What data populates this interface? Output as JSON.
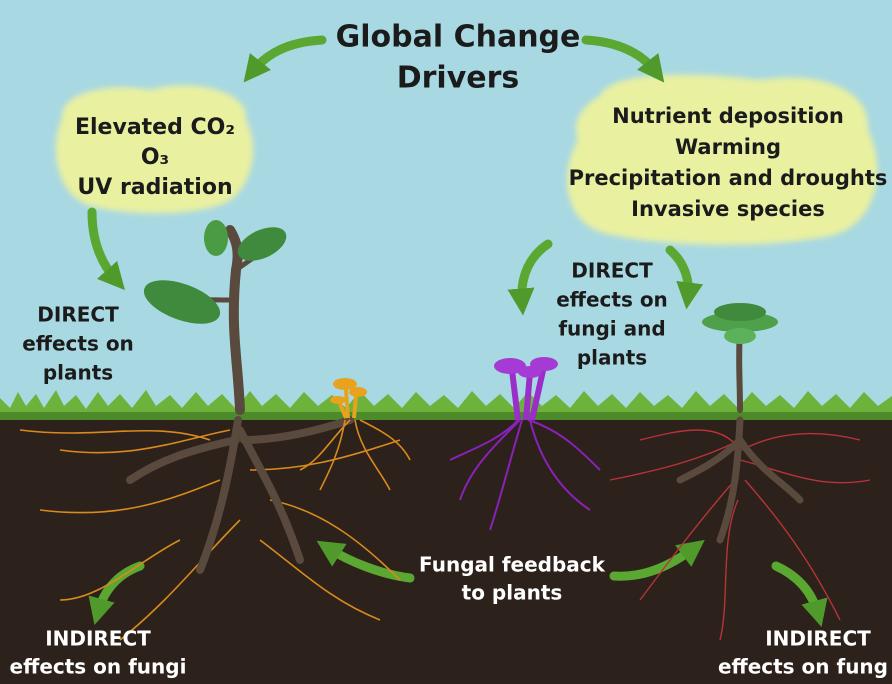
{
  "title": [
    "Global Change",
    "Drivers"
  ],
  "left_drivers": [
    "Elevated CO₂",
    "O₃",
    "UV radiation"
  ],
  "right_drivers": [
    "Nutrient deposition",
    "Warming",
    "Precipitation and droughts",
    "Invasive species"
  ],
  "labels": {
    "direct_plants": [
      "DIRECT",
      "effects on",
      "plants"
    ],
    "direct_fungi_plants": [
      "DIRECT",
      "effects on",
      "fungi and",
      "plants"
    ],
    "fungal_feedback": [
      "Fungal feedback",
      "to plants"
    ],
    "indirect_left": [
      "INDIRECT",
      "effects on fungi"
    ],
    "indirect_right": [
      "INDIRECT",
      "effects on fung"
    ]
  }
}
